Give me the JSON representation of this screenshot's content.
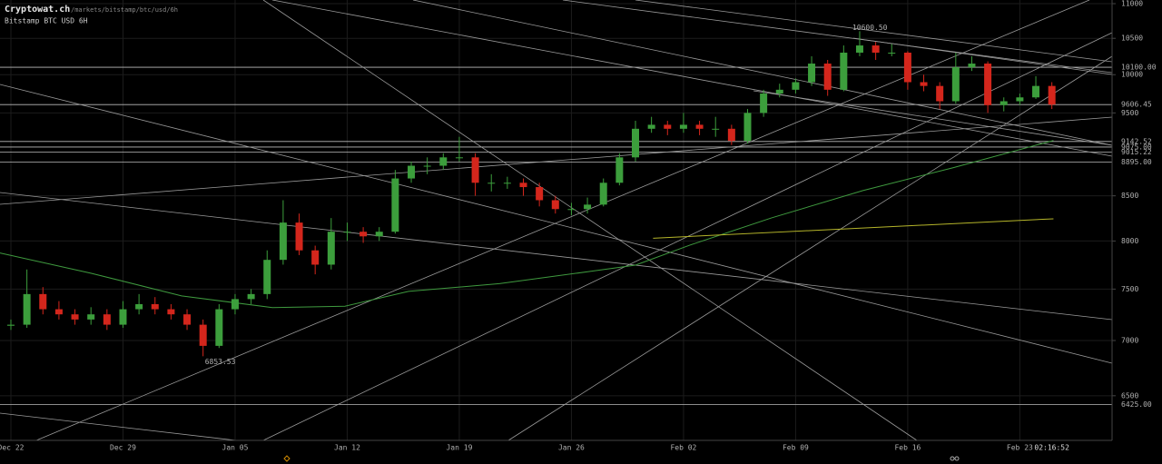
{
  "header": {
    "site": "Cryptowat.ch",
    "path": "/markets/bitstamp/btc/usd/6h",
    "market": "Bitstamp BTC USD 6H"
  },
  "chart_data": {
    "type": "candlestick",
    "log_scale": true,
    "grid": true,
    "up_color": "#3c9e3c",
    "down_color": "#d4261c",
    "ylim": [
      6122,
      11054
    ],
    "yticks": [
      6500,
      7000,
      7500,
      8000,
      8500,
      9500,
      10000,
      10500,
      11000
    ],
    "xlim": [
      -0.68,
      68.76
    ],
    "xticks": [
      {
        "value": 0,
        "label": "Dec 22"
      },
      {
        "value": 7,
        "label": "Dec 29"
      },
      {
        "value": 14,
        "label": "Jan 05"
      },
      {
        "value": 21,
        "label": "Jan 12"
      },
      {
        "value": 28,
        "label": "Jan 19"
      },
      {
        "value": 35,
        "label": "Jan 26"
      },
      {
        "value": 42,
        "label": "Feb 02"
      },
      {
        "value": 49,
        "label": "Feb 09"
      },
      {
        "value": 56,
        "label": "Feb 16"
      },
      {
        "value": 63,
        "label": "Feb 23"
      }
    ],
    "time_label": "02:16:52",
    "x": [
      0,
      1,
      2,
      3,
      4,
      5,
      6,
      7,
      8,
      9,
      10,
      11,
      12,
      13,
      14,
      15,
      16,
      17,
      18,
      19,
      20,
      21,
      22,
      23,
      24,
      25,
      26,
      27,
      28,
      29,
      30,
      31,
      32,
      33,
      34,
      35,
      36,
      37,
      38,
      39,
      40,
      41,
      42,
      43,
      44,
      45,
      46,
      47,
      48,
      49,
      50,
      51,
      52,
      53,
      54,
      55,
      56,
      57,
      58,
      59,
      60,
      61,
      62,
      63,
      64,
      65
    ],
    "ohlc": [
      [
        7140,
        7200,
        7100,
        7150
      ],
      [
        7150,
        7700,
        7120,
        7450
      ],
      [
        7450,
        7520,
        7250,
        7300
      ],
      [
        7300,
        7380,
        7200,
        7250
      ],
      [
        7250,
        7300,
        7150,
        7200
      ],
      [
        7200,
        7320,
        7150,
        7250
      ],
      [
        7250,
        7300,
        7100,
        7150
      ],
      [
        7150,
        7380,
        7120,
        7300
      ],
      [
        7300,
        7450,
        7250,
        7350
      ],
      [
        7350,
        7420,
        7250,
        7300
      ],
      [
        7300,
        7350,
        7200,
        7250
      ],
      [
        7250,
        7300,
        7100,
        7150
      ],
      [
        7150,
        7200,
        6853.53,
        6950
      ],
      [
        6950,
        7350,
        6930,
        7300
      ],
      [
        7300,
        7450,
        7250,
        7400
      ],
      [
        7400,
        7500,
        7350,
        7450
      ],
      [
        7450,
        7900,
        7400,
        7800
      ],
      [
        7800,
        8450,
        7750,
        8200
      ],
      [
        8200,
        8300,
        7850,
        7900
      ],
      [
        7900,
        7950,
        7650,
        7750
      ],
      [
        7750,
        8250,
        7700,
        8100
      ],
      [
        8100,
        8200,
        8000,
        8100
      ],
      [
        8100,
        8150,
        7980,
        8050
      ],
      [
        8050,
        8150,
        8000,
        8100
      ],
      [
        8100,
        8800,
        8080,
        8700
      ],
      [
        8700,
        8900,
        8650,
        8850
      ],
      [
        8850,
        8950,
        8750,
        8850
      ],
      [
        8850,
        9000,
        8800,
        8950
      ],
      [
        8950,
        9200,
        8900,
        8950
      ],
      [
        8950,
        9000,
        8500,
        8650
      ],
      [
        8650,
        8750,
        8550,
        8650
      ],
      [
        8650,
        8720,
        8580,
        8650
      ],
      [
        8650,
        8700,
        8500,
        8600
      ],
      [
        8600,
        8650,
        8380,
        8450
      ],
      [
        8450,
        8500,
        8300,
        8350
      ],
      [
        8350,
        8420,
        8280,
        8350
      ],
      [
        8350,
        8480,
        8300,
        8400
      ],
      [
        8400,
        8700,
        8380,
        8650
      ],
      [
        8650,
        9000,
        8620,
        8950
      ],
      [
        8950,
        9400,
        8900,
        9300
      ],
      [
        9300,
        9450,
        9250,
        9350
      ],
      [
        9350,
        9400,
        9220,
        9300
      ],
      [
        9300,
        9500,
        9250,
        9350
      ],
      [
        9350,
        9400,
        9220,
        9300
      ],
      [
        9300,
        9450,
        9200,
        9300
      ],
      [
        9300,
        9350,
        9100,
        9150
      ],
      [
        9150,
        9550,
        9120,
        9500
      ],
      [
        9500,
        9800,
        9450,
        9750
      ],
      [
        9750,
        9880,
        9700,
        9800
      ],
      [
        9800,
        9950,
        9750,
        9900
      ],
      [
        9900,
        10250,
        9850,
        10150
      ],
      [
        10150,
        10200,
        9720,
        9800
      ],
      [
        9800,
        10400,
        9780,
        10300
      ],
      [
        10300,
        10600.5,
        10250,
        10400
      ],
      [
        10400,
        10450,
        10200,
        10300
      ],
      [
        10300,
        10420,
        10250,
        10300
      ],
      [
        10300,
        10320,
        9800,
        9900
      ],
      [
        9900,
        10000,
        9780,
        9850
      ],
      [
        9850,
        9900,
        9550,
        9650
      ],
      [
        9650,
        10300,
        9620,
        10100
      ],
      [
        10100,
        10250,
        10050,
        10150
      ],
      [
        10150,
        10180,
        9500,
        9600
      ],
      [
        9600,
        9700,
        9520,
        9650
      ],
      [
        9650,
        9750,
        9600,
        9700
      ],
      [
        9700,
        9980,
        9680,
        9850
      ],
      [
        9850,
        9900,
        9550,
        9606.45
      ]
    ],
    "overlays": [
      {
        "color": "#3f9a3f",
        "x": [
          -0.68,
          4.99,
          10.66,
          16.33,
          20.86,
          24.83,
          30.5,
          36.17,
          39.0,
          42.4,
          47.5,
          53.2,
          58.8,
          65.1
        ],
        "values": [
          7872,
          7662,
          7432,
          7316,
          7330,
          7477,
          7555,
          7680,
          7745,
          7956,
          8252,
          8560,
          8825,
          9155
        ]
      },
      {
        "color": "#b5b52a",
        "x": [
          40.1,
          65.1
        ],
        "values": [
          8030,
          8242
        ]
      }
    ],
    "price_lines": [
      {
        "value": 10100,
        "label": "10100.00"
      },
      {
        "value": 9606.45,
        "label": "9606.45"
      },
      {
        "value": 9142.52,
        "label": "9142.52"
      },
      {
        "value": 9075,
        "label": "9075.00"
      },
      {
        "value": 9015.22,
        "label": "9015.22"
      },
      {
        "value": 8895,
        "label": "8895.00"
      },
      {
        "value": 6425,
        "label": "6425.00"
      }
    ],
    "annotations": [
      {
        "x": 53,
        "value": 10600.5,
        "label": "10600.50"
      },
      {
        "x": 12,
        "value": 6853.53,
        "label": "6853.53"
      }
    ]
  }
}
